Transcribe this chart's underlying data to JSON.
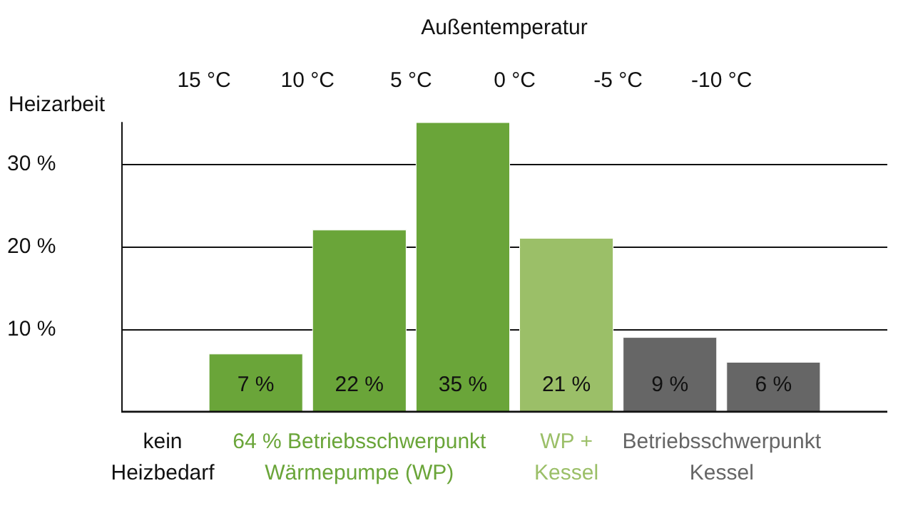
{
  "chart_data": {
    "type": "bar",
    "xlabel": "Außentemperatur",
    "ylabel": "Heizarbeit",
    "x": [
      12.5,
      7.5,
      2.5,
      -2.5,
      -7.5,
      -12.5
    ],
    "values": [
      7,
      22,
      35,
      21,
      9,
      6
    ],
    "value_labels": [
      "7 %",
      "22 %",
      "35 %",
      "21 %",
      "9 %",
      "6 %"
    ],
    "colors": [
      "#6aa539",
      "#6aa539",
      "#6aa539",
      "#9bbf68",
      "#666666",
      "#666666"
    ],
    "xlim": [
      19,
      -18
    ],
    "xticks": [
      {
        "value": 15,
        "label": "15 °C"
      },
      {
        "value": 10,
        "label": "10 °C"
      },
      {
        "value": 5,
        "label": "5 °C"
      },
      {
        "value": 0,
        "label": "0 °C"
      },
      {
        "value": -5,
        "label": "-5 °C"
      },
      {
        "value": -10,
        "label": "-10 °C"
      }
    ],
    "ylim": [
      0,
      35
    ],
    "yticks": [
      {
        "value": 10,
        "label": "10 %"
      },
      {
        "value": 20,
        "label": "20 %"
      },
      {
        "value": 30,
        "label": "30 %"
      }
    ],
    "grid": "y",
    "annotations": [
      "kein\nHeizbedarf",
      "64 % Betriebsschwerpunkt\nWärmepumpe (WP)",
      "WP +\nKessel",
      "Betriebsschwerpunkt\nKessel"
    ]
  }
}
